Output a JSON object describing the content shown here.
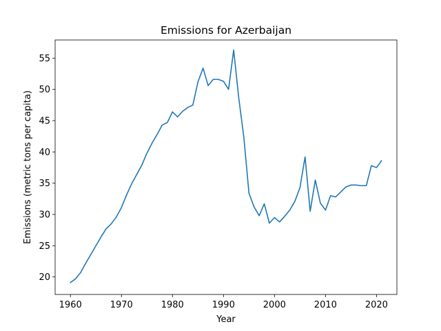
{
  "chart_data": {
    "type": "line",
    "title": "Emissions for Azerbaijan",
    "xlabel": "Year",
    "ylabel": "Emissions (metric tons per capita)",
    "xlim": [
      1957,
      2024
    ],
    "ylim": [
      17.2,
      57.9
    ],
    "xticks": [
      1960,
      1970,
      1980,
      1990,
      2000,
      2010,
      2020
    ],
    "yticks": [
      20,
      25,
      30,
      35,
      40,
      45,
      50,
      55
    ],
    "grid": false,
    "line_color": "#1f77b4",
    "series": [
      {
        "x": [
          1960,
          1961,
          1962,
          1963,
          1964,
          1965,
          1966,
          1967,
          1968,
          1969,
          1970,
          1971,
          1972,
          1973,
          1974,
          1975,
          1976,
          1977,
          1978,
          1979,
          1980,
          1981,
          1982,
          1983,
          1984,
          1985,
          1986,
          1987,
          1988,
          1989,
          1990,
          1991,
          1992,
          1993,
          1994,
          1995,
          1996,
          1997,
          1998,
          1999,
          2000,
          2001,
          2002,
          2003,
          2004,
          2005,
          2006,
          2007,
          2008,
          2009,
          2010,
          2011,
          2012,
          2013,
          2014,
          2015,
          2016,
          2017,
          2018,
          2019,
          2020,
          2021
        ],
        "y": [
          19.1,
          19.7,
          20.7,
          22.2,
          23.6,
          25.0,
          26.4,
          27.7,
          28.5,
          29.6,
          31.1,
          33.1,
          34.9,
          36.4,
          37.9,
          39.8,
          41.4,
          42.8,
          44.3,
          44.7,
          46.4,
          45.6,
          46.5,
          47.1,
          47.5,
          51.2,
          53.4,
          50.6,
          51.6,
          51.6,
          51.3,
          50.0,
          56.3,
          48.6,
          42.3,
          33.4,
          31.2,
          29.8,
          31.7,
          28.6,
          29.5,
          28.8,
          29.7,
          30.7,
          32.1,
          34.3,
          39.2,
          30.5,
          35.5,
          31.8,
          30.7,
          33.0,
          32.8,
          33.6,
          34.4,
          34.7,
          34.7,
          34.6,
          34.6,
          37.8,
          37.5,
          38.6
        ]
      }
    ]
  }
}
